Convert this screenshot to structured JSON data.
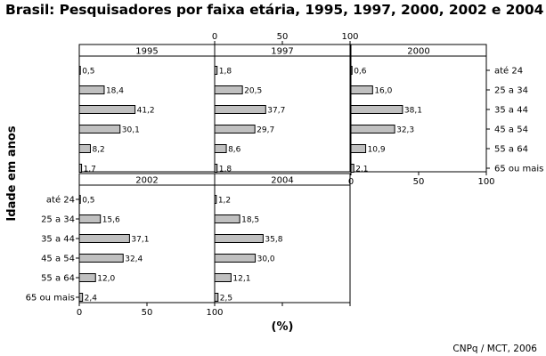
{
  "chart_data": {
    "type": "bar",
    "orientation": "horizontal",
    "title": "Brasil: Pesquisadores por faixa etária, 1995, 1997, 2000, 2002 e 2004",
    "xlabel": "(%)",
    "ylabel": "Idade em anos",
    "source": "CNPq / MCT, 2006",
    "xlim": [
      0,
      100
    ],
    "xticks": [
      0,
      50,
      100
    ],
    "categories": [
      "até 24",
      "25 a 34",
      "35 a 44",
      "45 a 54",
      "55 a 64",
      "65 ou mais"
    ],
    "bar_color": "#c0c0c0",
    "panels": [
      {
        "name": "1995",
        "values": [
          0.5,
          18.4,
          41.2,
          30.1,
          8.2,
          1.7
        ],
        "labels": [
          "0,5",
          "18,4",
          "41,2",
          "30,1",
          "8,2",
          "1,7"
        ]
      },
      {
        "name": "1997",
        "values": [
          1.8,
          20.5,
          37.7,
          29.7,
          8.6,
          1.8
        ],
        "labels": [
          "1,8",
          "20,5",
          "37,7",
          "29,7",
          "8,6",
          "1,8"
        ]
      },
      {
        "name": "2000",
        "values": [
          0.6,
          16.0,
          38.1,
          32.3,
          10.9,
          2.1
        ],
        "labels": [
          "0,6",
          "16,0",
          "38,1",
          "32,3",
          "10,9",
          "2,1"
        ]
      },
      {
        "name": "2002",
        "values": [
          0.5,
          15.6,
          37.1,
          32.4,
          12.0,
          2.4
        ],
        "labels": [
          "0,5",
          "15,6",
          "37,1",
          "32,4",
          "12,0",
          "2,4"
        ]
      },
      {
        "name": "2004",
        "values": [
          1.2,
          18.5,
          35.8,
          30.0,
          12.1,
          2.5
        ],
        "labels": [
          "1,2",
          "18,5",
          "35,8",
          "30,0",
          "12,1",
          "2,5"
        ]
      }
    ]
  }
}
